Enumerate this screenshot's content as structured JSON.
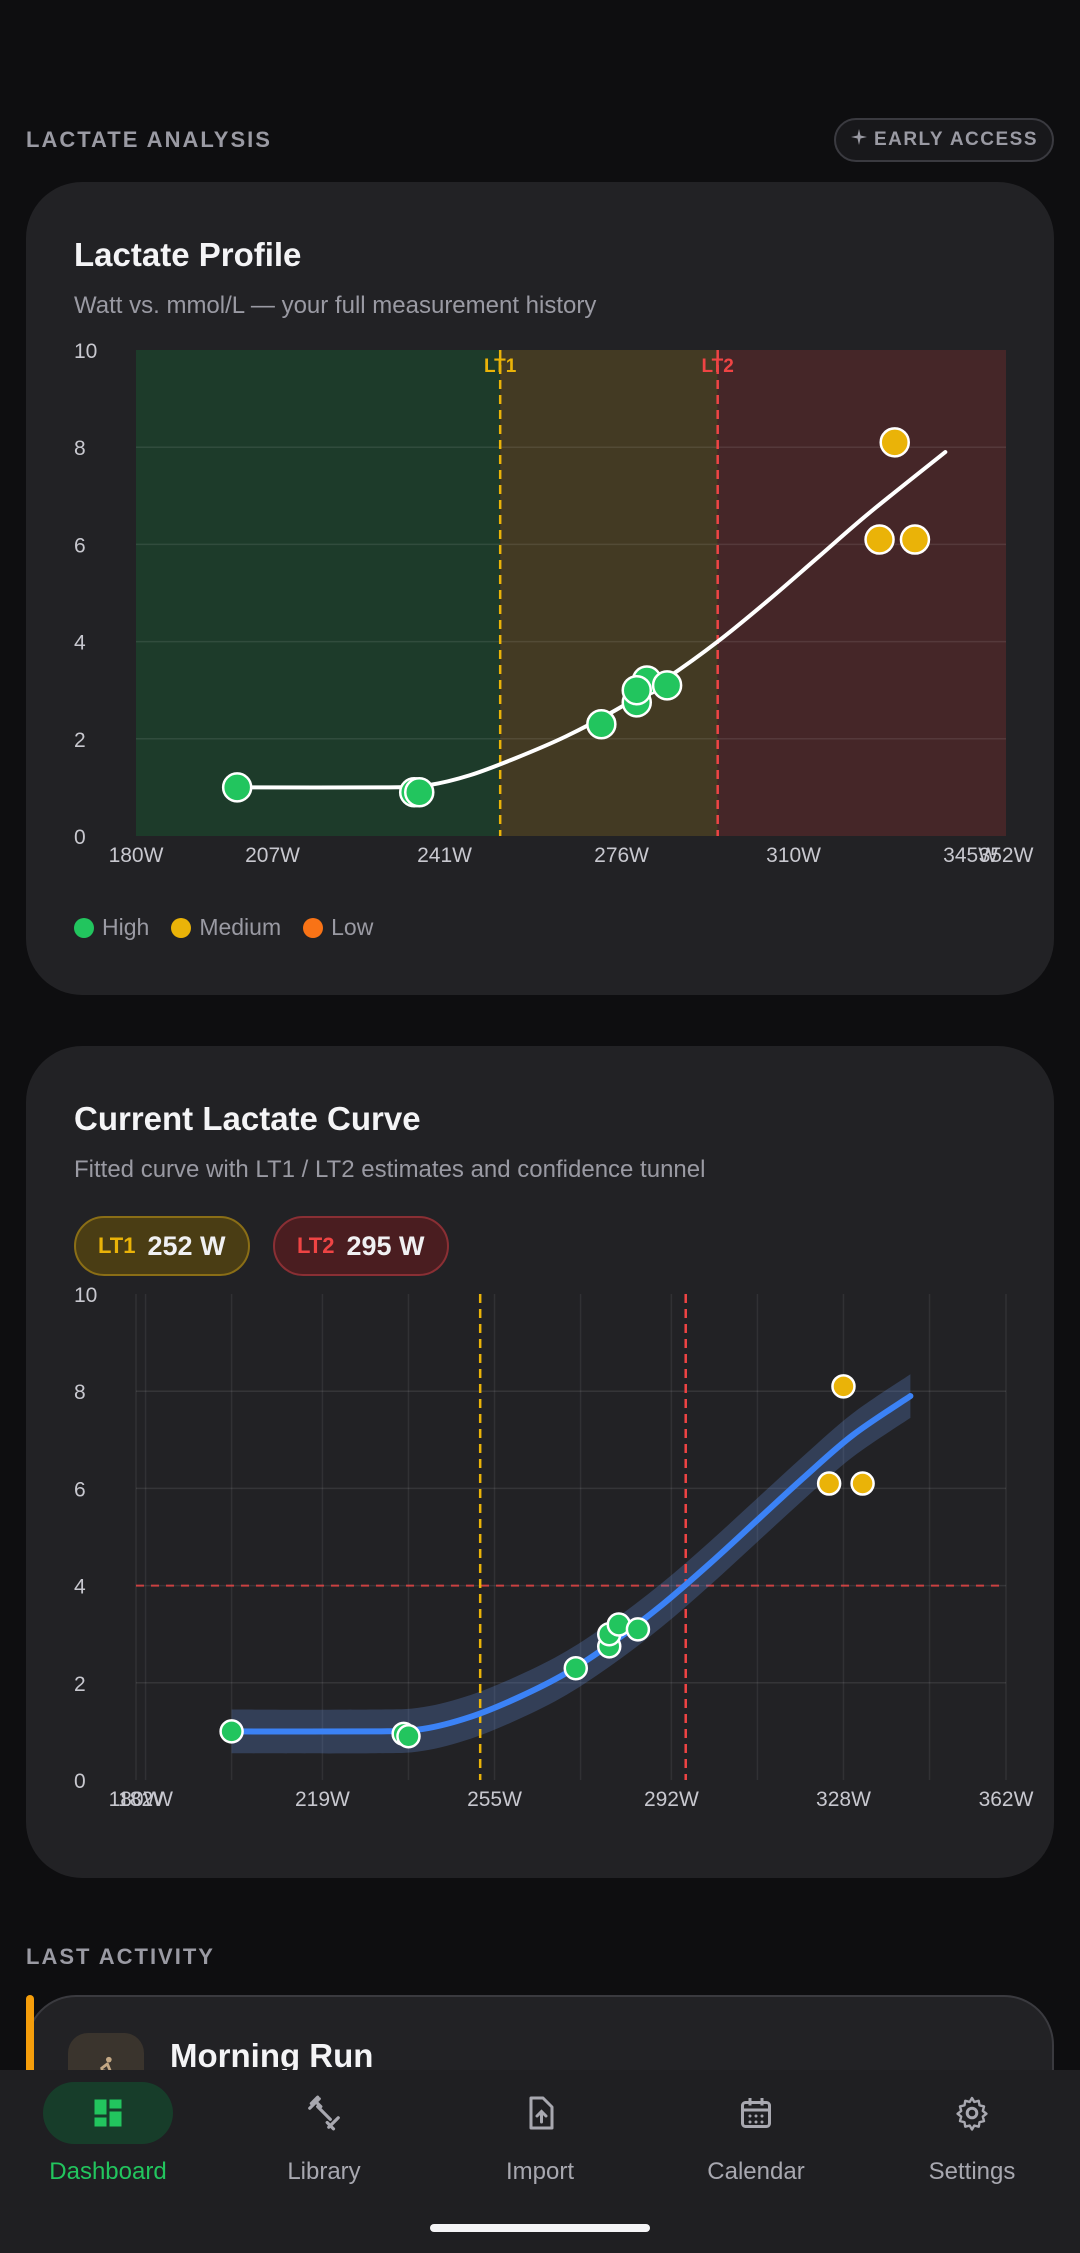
{
  "header": {
    "section_title": "LACTATE ANALYSIS",
    "badge_label": "EARLY ACCESS"
  },
  "profile_card": {
    "title": "Lactate Profile",
    "subtitle": "Watt vs. mmol/L — your full measurement history",
    "legend": [
      {
        "label": "High",
        "color": "#22c55e"
      },
      {
        "label": "Medium",
        "color": "#eab308"
      },
      {
        "label": "Low",
        "color": "#f97316"
      }
    ]
  },
  "curve_card": {
    "title": "Current Lactate Curve",
    "subtitle": "Fitted curve with LT1 / LT2 estimates and confidence tunnel",
    "lt1": {
      "label": "LT1",
      "value": "252 W"
    },
    "lt2": {
      "label": "LT2",
      "value": "295 W"
    }
  },
  "chart_data": [
    {
      "type": "scatter",
      "title": "Lactate Profile",
      "xlim": [
        180,
        352
      ],
      "ylim": [
        0,
        10
      ],
      "x_ticks": [
        "180W",
        "207W",
        "241W",
        "276W",
        "310W",
        "345W",
        "352W"
      ],
      "x_tick_values": [
        180,
        207,
        241,
        276,
        310,
        345,
        352
      ],
      "y_ticks": [
        "0",
        "2",
        "4",
        "6",
        "8",
        "10"
      ],
      "y_tick_values": [
        0,
        2,
        4,
        6,
        8,
        10
      ],
      "zones": [
        {
          "from": 180,
          "to": 252,
          "color": "#1d3b2a"
        },
        {
          "from": 252,
          "to": 295,
          "color": "#433a23"
        },
        {
          "from": 295,
          "to": 352,
          "color": "#452628"
        }
      ],
      "thresholds": [
        {
          "label": "LT1",
          "x": 252,
          "color": "#eab308"
        },
        {
          "label": "LT2",
          "x": 295,
          "color": "#ef4444"
        }
      ],
      "points": [
        {
          "x": 200,
          "y": 1.0,
          "confidence": "High"
        },
        {
          "x": 235,
          "y": 0.9,
          "confidence": "High"
        },
        {
          "x": 236,
          "y": 0.9,
          "confidence": "High"
        },
        {
          "x": 272,
          "y": 2.3,
          "confidence": "High"
        },
        {
          "x": 279,
          "y": 2.75,
          "confidence": "High"
        },
        {
          "x": 281,
          "y": 3.2,
          "confidence": "High"
        },
        {
          "x": 279,
          "y": 3.0,
          "confidence": "High"
        },
        {
          "x": 285,
          "y": 3.1,
          "confidence": "High"
        },
        {
          "x": 330,
          "y": 8.1,
          "confidence": "Medium"
        },
        {
          "x": 327,
          "y": 6.1,
          "confidence": "Medium"
        },
        {
          "x": 334,
          "y": 6.1,
          "confidence": "Medium"
        }
      ],
      "curve": [
        [
          200,
          1.0
        ],
        [
          230,
          1.0
        ],
        [
          238,
          1.05
        ],
        [
          246,
          1.25
        ],
        [
          255,
          1.6
        ],
        [
          265,
          2.05
        ],
        [
          275,
          2.6
        ],
        [
          285,
          3.25
        ],
        [
          295,
          4.0
        ],
        [
          305,
          4.85
        ],
        [
          315,
          5.75
        ],
        [
          325,
          6.65
        ],
        [
          340,
          7.9
        ]
      ]
    },
    {
      "type": "line",
      "title": "Current Lactate Curve",
      "xlim": [
        180,
        362
      ],
      "ylim": [
        0,
        10
      ],
      "x_ticks": [
        "180W",
        "182W",
        "219W",
        "255W",
        "292W",
        "328W",
        "362W"
      ],
      "x_tick_values": [
        180,
        182,
        219,
        255,
        292,
        328,
        362
      ],
      "y_ticks": [
        "0",
        "2",
        "4",
        "6",
        "8",
        "10"
      ],
      "y_tick_values": [
        0,
        2,
        4,
        6,
        8,
        10
      ],
      "reference_y": 4,
      "thresholds": [
        {
          "label": "LT1",
          "x": 252,
          "color": "#eab308"
        },
        {
          "label": "LT2",
          "x": 295,
          "color": "#ef4444"
        }
      ],
      "points": [
        {
          "x": 200,
          "y": 1.0,
          "confidence": "High"
        },
        {
          "x": 236,
          "y": 0.95,
          "confidence": "High"
        },
        {
          "x": 237,
          "y": 0.9,
          "confidence": "High"
        },
        {
          "x": 272,
          "y": 2.3,
          "confidence": "High"
        },
        {
          "x": 279,
          "y": 2.75,
          "confidence": "High"
        },
        {
          "x": 279,
          "y": 3.0,
          "confidence": "High"
        },
        {
          "x": 281,
          "y": 3.2,
          "confidence": "High"
        },
        {
          "x": 285,
          "y": 3.1,
          "confidence": "High"
        },
        {
          "x": 328,
          "y": 8.1,
          "confidence": "Medium"
        },
        {
          "x": 325,
          "y": 6.1,
          "confidence": "Medium"
        },
        {
          "x": 332,
          "y": 6.1,
          "confidence": "Medium"
        }
      ],
      "curve": [
        [
          200,
          1.0
        ],
        [
          230,
          1.0
        ],
        [
          240,
          1.05
        ],
        [
          250,
          1.3
        ],
        [
          260,
          1.7
        ],
        [
          270,
          2.2
        ],
        [
          280,
          2.85
        ],
        [
          290,
          3.6
        ],
        [
          300,
          4.45
        ],
        [
          310,
          5.35
        ],
        [
          320,
          6.25
        ],
        [
          330,
          7.1
        ],
        [
          342,
          7.9
        ]
      ],
      "band_width": 0.45
    }
  ],
  "activity": {
    "section_title": "LAST ACTIVITY",
    "title": "Morning Run",
    "icon": "running-icon",
    "accent_color": "#f59e0b"
  },
  "nav": [
    {
      "label": "Dashboard",
      "icon": "dashboard-icon",
      "active": true
    },
    {
      "label": "Library",
      "icon": "dumbbell-icon",
      "active": false
    },
    {
      "label": "Import",
      "icon": "upload-file-icon",
      "active": false
    },
    {
      "label": "Calendar",
      "icon": "calendar-icon",
      "active": false
    },
    {
      "label": "Settings",
      "icon": "gear-icon",
      "active": false
    }
  ]
}
